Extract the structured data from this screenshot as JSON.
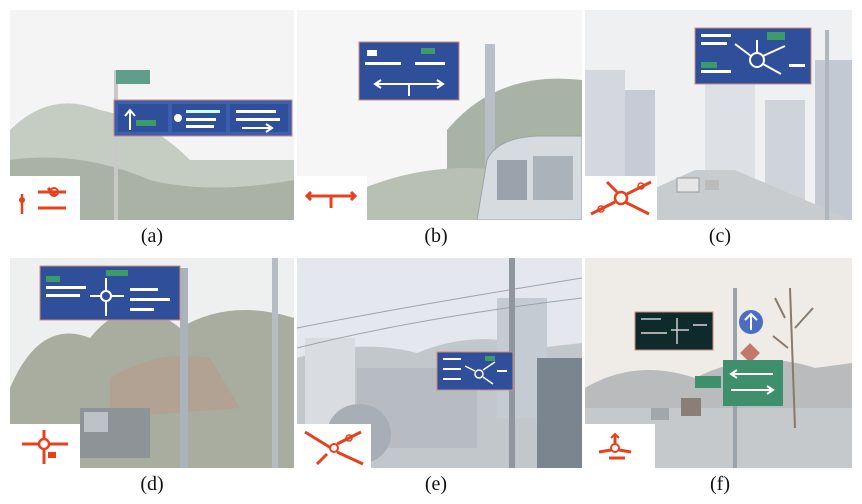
{
  "figure": {
    "panels": [
      {
        "id": "a",
        "caption": "(a)",
        "pictogram_icon": "junction-pictogram-a-icon",
        "sign_icon": "directional-guide-sign-a-icon"
      },
      {
        "id": "b",
        "caption": "(b)",
        "pictogram_icon": "junction-pictogram-b-icon",
        "sign_icon": "directional-guide-sign-b-icon"
      },
      {
        "id": "c",
        "caption": "(c)",
        "pictogram_icon": "junction-pictogram-c-icon",
        "sign_icon": "directional-guide-sign-c-icon"
      },
      {
        "id": "d",
        "caption": "(d)",
        "pictogram_icon": "junction-pictogram-d-icon",
        "sign_icon": "directional-guide-sign-d-icon"
      },
      {
        "id": "e",
        "caption": "(e)",
        "pictogram_icon": "junction-pictogram-e-icon",
        "sign_icon": "directional-guide-sign-e-icon"
      },
      {
        "id": "f",
        "caption": "(f)",
        "pictogram_icon": "junction-pictogram-f-icon",
        "sign_icon": "directional-guide-sign-f-icon"
      }
    ],
    "colors": {
      "sign_blue": "#1f3f8f",
      "sign_dark": "#0f2a2a",
      "sign_green": "#2f7a5a",
      "pictogram_red": "#e8401c",
      "sky": "#f2f2f2"
    }
  }
}
